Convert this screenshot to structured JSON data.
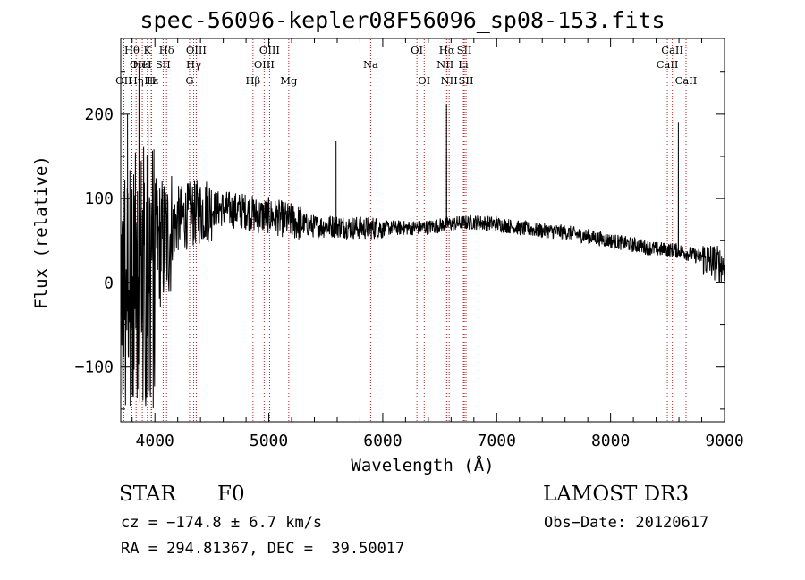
{
  "chart_data": {
    "type": "line",
    "title": "spec-56096-kepler08F56096_sp08-153.fits",
    "xlabel": "Wavelength (Å)",
    "ylabel": "Flux (relative)",
    "xlim": [
      3700,
      9000
    ],
    "ylim": [
      -165,
      290
    ],
    "xticks": [
      4000,
      5000,
      6000,
      7000,
      8000,
      9000
    ],
    "yticks": [
      -100,
      0,
      100,
      200
    ],
    "xtick_labels": [
      "4000",
      "5000",
      "6000",
      "7000",
      "8000",
      "9000"
    ],
    "ytick_labels": [
      "−100",
      "0",
      "100",
      "200"
    ],
    "spectrum_trend": {
      "x": [
        3700,
        3800,
        3900,
        4000,
        4100,
        4200,
        4300,
        4400,
        4500,
        4600,
        4700,
        4800,
        4900,
        5000,
        5200,
        5400,
        5600,
        5800,
        6000,
        6200,
        6400,
        6600,
        6800,
        7000,
        7200,
        7400,
        7600,
        7800,
        8000,
        8200,
        8400,
        8600,
        8800,
        9000
      ],
      "y": [
        10,
        20,
        40,
        45,
        50,
        75,
        80,
        85,
        88,
        88,
        86,
        85,
        80,
        80,
        73,
        67,
        67,
        65,
        65,
        65,
        66,
        70,
        72,
        70,
        65,
        62,
        60,
        55,
        50,
        45,
        40,
        38,
        30,
        20
      ],
      "spikes": [
        {
          "x": 3760,
          "y": 200
        },
        {
          "x": 3860,
          "y": 260
        },
        {
          "x": 3940,
          "y": 200
        },
        {
          "x": 5590,
          "y": 168
        },
        {
          "x": 6560,
          "y": 212
        },
        {
          "x": 8595,
          "y": 190
        }
      ]
    },
    "lines": [
      {
        "name": "OII",
        "wavelength": 3727,
        "row": 2
      },
      {
        "name": "Hθ",
        "wavelength": 3798,
        "row": 0
      },
      {
        "name": "OIII",
        "wavelength": 3869,
        "row": 1
      },
      {
        "name": "Hη",
        "wavelength": 3835,
        "row": 2
      },
      {
        "name": "HeI",
        "wavelength": 3889,
        "row": 1
      },
      {
        "name": "K",
        "wavelength": 3934,
        "row": 0
      },
      {
        "name": "Hε",
        "wavelength": 3970,
        "row": 2
      },
      {
        "name": "H",
        "wavelength": 3968,
        "row": 2
      },
      {
        "name": "SII",
        "wavelength": 4072,
        "row": 1
      },
      {
        "name": "Hδ",
        "wavelength": 4102,
        "row": 0
      },
      {
        "name": "G",
        "wavelength": 4304,
        "row": 2
      },
      {
        "name": "Hγ",
        "wavelength": 4340,
        "row": 1
      },
      {
        "name": "OIII",
        "wavelength": 4363,
        "row": 0
      },
      {
        "name": "Hβ",
        "wavelength": 4861,
        "row": 2
      },
      {
        "name": "OIII",
        "wavelength": 4959,
        "row": 1
      },
      {
        "name": "OIII",
        "wavelength": 5007,
        "row": 0
      },
      {
        "name": "Mg",
        "wavelength": 5175,
        "row": 2
      },
      {
        "name": "Na",
        "wavelength": 5894,
        "row": 1
      },
      {
        "name": "OI",
        "wavelength": 6300,
        "row": 0
      },
      {
        "name": "OI",
        "wavelength": 6364,
        "row": 2
      },
      {
        "name": "NII",
        "wavelength": 6548,
        "row": 1
      },
      {
        "name": "Hα",
        "wavelength": 6563,
        "row": 0
      },
      {
        "name": "NII",
        "wavelength": 6583,
        "row": 2
      },
      {
        "name": "SII",
        "wavelength": 6716,
        "row": 0
      },
      {
        "name": "Li",
        "wavelength": 6708,
        "row": 1
      },
      {
        "name": "SII",
        "wavelength": 6731,
        "row": 2
      },
      {
        "name": "CaII",
        "wavelength": 8498,
        "row": 1
      },
      {
        "name": "CaII",
        "wavelength": 8542,
        "row": 0
      },
      {
        "name": "CaII",
        "wavelength": 8662,
        "row": 2
      }
    ]
  },
  "info": {
    "object_class": "STAR",
    "subclass": "F0",
    "survey": "LAMOST DR3",
    "cz": "cz = −174.8 ± 6.7 km/s",
    "obs_date": "Obs−Date: 20120617",
    "coords": "RA = 294.81367, DEC =  39.50017"
  },
  "colors": {
    "spectrum": "#000000",
    "line_markers": "#b22222",
    "axis": "#000000"
  }
}
